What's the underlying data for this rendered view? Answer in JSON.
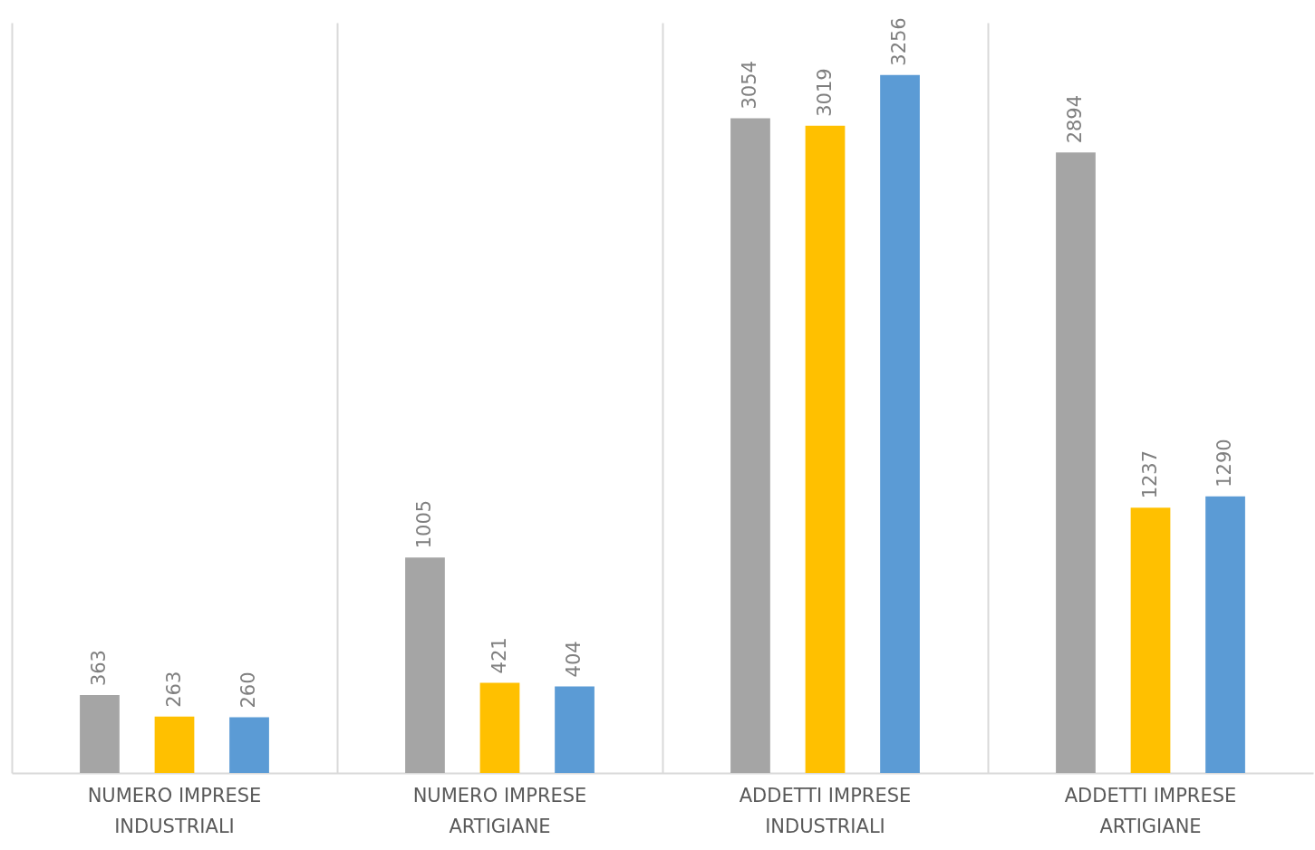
{
  "chart_data": {
    "type": "bar",
    "categories": [
      "NUMERO IMPRESE\nINDUSTRIALI",
      "NUMERO IMPRESE\nARTIGIANE",
      "ADDETTI IMPRESE\nINDUSTRIALI",
      "ADDETTI IMPRESE\nARTIGIANE"
    ],
    "series": [
      {
        "color": "#a5a5a5",
        "values": [
          363,
          1005,
          3054,
          2894
        ]
      },
      {
        "color": "#ffc000",
        "values": [
          263,
          421,
          3019,
          1237
        ]
      },
      {
        "color": "#5b9bd5",
        "values": [
          260,
          404,
          3256,
          1290
        ]
      }
    ],
    "data_labels": true,
    "grid": "x",
    "legend": false
  }
}
